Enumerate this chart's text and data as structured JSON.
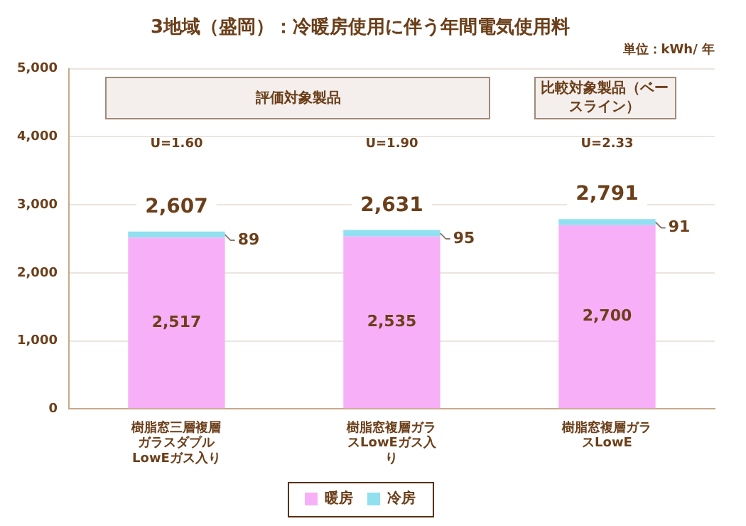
{
  "chart_data": {
    "type": "bar",
    "title": "3地域（盛岡）：冷暖房使用に伴う年間電気使用料",
    "subtitle": "単位：kWh/ 年",
    "categories": [
      "樹脂窓三層複層ガラスダブル LowEガス入り",
      "樹脂窓複層ガラスLowEガス入り",
      "樹脂窓複層ガラスLowE"
    ],
    "series": [
      {
        "name": "暖房",
        "color": "#f7b0f7",
        "values": [
          2517,
          2535,
          2700
        ],
        "value_labels": [
          "2,517",
          "2,535",
          "2,700"
        ]
      },
      {
        "name": "冷房",
        "color": "#90e0f0",
        "values": [
          89,
          95,
          91
        ],
        "value_labels": [
          "89",
          "95",
          "91"
        ]
      }
    ],
    "stacked": true,
    "totals": [
      "2,607",
      "2,631",
      "2,791"
    ],
    "ylim": [
      0,
      5000
    ],
    "yticks": [
      0,
      {
        "value": 1000,
        "label": "1,000"
      },
      {
        "value": 2000,
        "label": "2,000"
      },
      {
        "value": 3000,
        "label": "3,000"
      },
      {
        "value": 4000,
        "label": "4,000"
      },
      {
        "value": 5000,
        "label": "5,000"
      }
    ],
    "grid": "y",
    "legend": "bottom",
    "annotations": [
      "評価対象製品",
      "比較対象製品（ベースライン）",
      "U=1.60",
      "U=1.90",
      "U=2.33"
    ]
  }
}
